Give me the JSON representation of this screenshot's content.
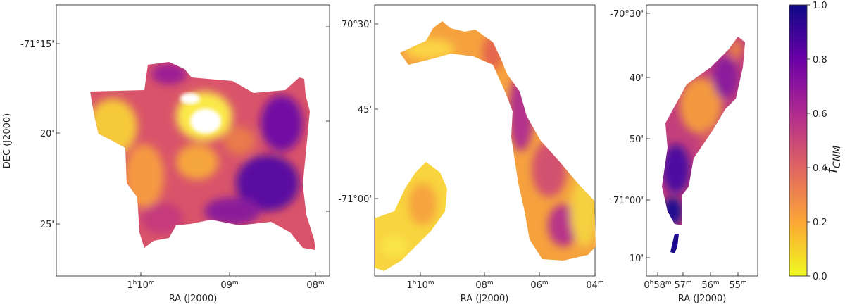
{
  "chart_data": [
    {
      "type": "heatmap",
      "panel": "left",
      "xlabel": "RA (J2000)",
      "ylabel": "DEC (J2000)",
      "x_ticks": [
        "1h10m",
        "09m",
        "08m"
      ],
      "y_ticks": [
        "-71°15'",
        "20'",
        "25'"
      ],
      "value_range": [
        0.0,
        1.0
      ],
      "description_of_values": "f_CNM map; mostly 0.4–0.9 (orange to purple), lower (~0–0.2) in upper-central hole"
    },
    {
      "type": "heatmap",
      "panel": "middle",
      "xlabel": "RA (J2000)",
      "ylabel": "",
      "x_ticks": [
        "1h10m",
        "08m",
        "06m",
        "04m"
      ],
      "y_ticks": [
        "-70°30'",
        "45'",
        "-71°00'"
      ],
      "value_range": [
        0.0,
        1.0
      ]
    },
    {
      "type": "heatmap",
      "panel": "right",
      "xlabel": "RA (J2000)",
      "ylabel": "",
      "x_ticks": [
        "0h58m",
        "57m",
        "56m",
        "55m"
      ],
      "y_ticks": [
        "-70°30'",
        "40'",
        "50'",
        "-71°00'",
        "10'"
      ],
      "value_range": [
        0.0,
        1.0
      ]
    }
  ],
  "colorbar": {
    "label_main": "f",
    "label_sub": "CNM",
    "ticks": [
      "0.0",
      "0.2",
      "0.4",
      "0.6",
      "0.8",
      "1.0"
    ],
    "colormap": "plasma_r",
    "colors": [
      "#f0f921",
      "#fca636",
      "#e16462",
      "#b12a90",
      "#6a00a8",
      "#0d0887"
    ]
  },
  "panel1": {
    "xlabel": "RA (J2000)",
    "ylabel": "DEC (J2000)",
    "xt": [
      {
        "h": "1",
        "m": "10",
        "pre": "h",
        "suf": "m"
      },
      {
        "h": "",
        "m": "09",
        "pre": "",
        "suf": "m"
      },
      {
        "h": "",
        "m": "08",
        "pre": "",
        "suf": "m"
      }
    ],
    "yt": [
      "-71°15'",
      "20'",
      "25'"
    ]
  },
  "panel2": {
    "xlabel": "RA (J2000)",
    "xt": [
      "10",
      "08",
      "06",
      "04"
    ],
    "yt": [
      "-70°30'",
      "45'",
      "-71°00'"
    ]
  },
  "panel3": {
    "xlabel": "RA (J2000)",
    "xt": [
      "58",
      "57",
      "56",
      "55"
    ],
    "yt": [
      "-70°30'",
      "40'",
      "50'",
      "-71°00'",
      "10'"
    ]
  },
  "superscripts": {
    "h": "h",
    "m": "m"
  },
  "prefixes": {
    "one": "1",
    "zero": "0"
  }
}
